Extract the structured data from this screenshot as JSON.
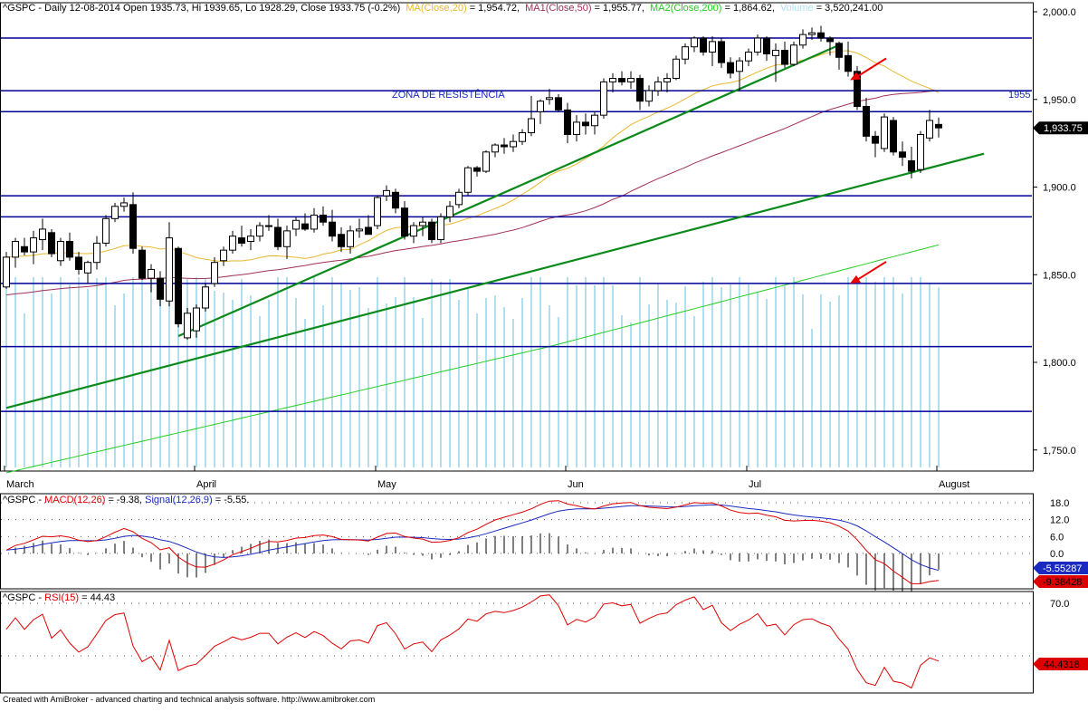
{
  "header": {
    "main_prefix": "^GSPC - Daily 12-08-2014 Open 1935.73, Hi 1939.65, Lo 1928.29, Close 1933.75 (-0.2%)",
    "ma20_label": "MA(Close,20)",
    "ma20_value": " = 1,954.72,",
    "ma50_label": "MA1(Close,50)",
    "ma50_value": " = 1,955.77,",
    "ma200_label": "MA2(Close,200)",
    "ma200_value": " = 1,864.62,",
    "volume_label": "Volume",
    "volume_value": " = 3,520,241.00",
    "macd_prefix": "^GSPC - ",
    "macd_label": "MACD(12,26)",
    "macd_value": " = -9.38, ",
    "signal_label": "Signal(12,26,9)",
    "signal_value": " = -5.55.",
    "rsi_prefix": "^GSPC - ",
    "rsi_label": "RSI(15)",
    "rsi_value": " = 44.43"
  },
  "footer_text": "Created with AmiBroker - advanced charting and technical analysis software. http://www.amibroker.com",
  "colors": {
    "ma20": "#e8b830",
    "ma50": "#a0305a",
    "ma200": "#22cc22",
    "volume": "#b0e0f0",
    "trendline": "#0a8a1a",
    "level": "#000099",
    "macd": "#dd0000",
    "signal": "#1a2ac0",
    "rsi": "#dd0000",
    "arrow": "#ee0000"
  },
  "chart_data": [
    {
      "type": "candlestick",
      "title": "^GSPC - Daily 12-08-2014",
      "ylim": [
        1735,
        2005
      ],
      "y_ticks": [
        "2,000.0",
        "1,950.0",
        "1,900.0",
        "1,850.0",
        "1,800.0",
        "1,750.0"
      ],
      "y_tick_values": [
        2000,
        1950,
        1900,
        1850,
        1800,
        1750
      ],
      "months": [
        "March",
        "April",
        "May",
        "Jun",
        "Jul",
        "August"
      ],
      "month_start_index": [
        0,
        21,
        41,
        62,
        82,
        103
      ],
      "last_close_label": "1,933.75",
      "last_close": 1933.75,
      "annotation_text": "ZONA DE RESISTÊNCIA",
      "annotation_value": "1955",
      "horizontal_levels": [
        1985,
        1955,
        1943,
        1895,
        1883,
        1845,
        1809,
        1772
      ],
      "trendlines": [
        {
          "from": [
            19,
            1815
          ],
          "to": [
            92,
            1981
          ]
        },
        {
          "from": [
            0,
            1774
          ],
          "to": [
            108,
            1919
          ]
        }
      ],
      "arrow_targets": [
        {
          "index": 93,
          "value": 1961
        },
        {
          "index": 93,
          "value": 1845
        }
      ],
      "candles": [
        [
          1843,
          1863,
          1842,
          1860
        ],
        [
          1860,
          1871,
          1854,
          1869
        ],
        [
          1866,
          1871,
          1861,
          1863
        ],
        [
          1863,
          1875,
          1856,
          1871
        ],
        [
          1870,
          1882,
          1864,
          1876
        ],
        [
          1874,
          1876,
          1860,
          1862
        ],
        [
          1858,
          1871,
          1855,
          1869
        ],
        [
          1869,
          1874,
          1858,
          1860
        ],
        [
          1860,
          1863,
          1850,
          1853
        ],
        [
          1851,
          1858,
          1845,
          1857
        ],
        [
          1857,
          1872,
          1853,
          1868
        ],
        [
          1868,
          1884,
          1866,
          1882
        ],
        [
          1882,
          1891,
          1880,
          1889
        ],
        [
          1889,
          1894,
          1886,
          1891
        ],
        [
          1890,
          1897,
          1862,
          1865
        ],
        [
          1864,
          1866,
          1847,
          1848
        ],
        [
          1848,
          1856,
          1840,
          1853
        ],
        [
          1848,
          1852,
          1832,
          1836
        ],
        [
          1835,
          1880,
          1832,
          1871
        ],
        [
          1865,
          1866,
          1820,
          1822
        ],
        [
          1814,
          1831,
          1813,
          1828
        ],
        [
          1818,
          1833,
          1814,
          1831
        ],
        [
          1831,
          1845,
          1829,
          1843
        ],
        [
          1845,
          1860,
          1843,
          1857
        ],
        [
          1858,
          1866,
          1855,
          1864
        ],
        [
          1864,
          1875,
          1862,
          1872
        ],
        [
          1871,
          1878,
          1866,
          1868
        ],
        [
          1869,
          1876,
          1864,
          1872
        ],
        [
          1872,
          1880,
          1869,
          1878
        ],
        [
          1878,
          1884,
          1875,
          1878
        ],
        [
          1877,
          1882,
          1864,
          1866
        ],
        [
          1866,
          1878,
          1859,
          1875
        ],
        [
          1876,
          1883,
          1872,
          1881
        ],
        [
          1879,
          1885,
          1875,
          1876
        ],
        [
          1876,
          1888,
          1874,
          1884
        ],
        [
          1884,
          1889,
          1878,
          1880
        ],
        [
          1880,
          1887,
          1869,
          1872
        ],
        [
          1873,
          1877,
          1863,
          1866
        ],
        [
          1866,
          1878,
          1862,
          1875
        ],
        [
          1875,
          1882,
          1871,
          1876
        ],
        [
          1877,
          1884,
          1874,
          1873
        ],
        [
          1878,
          1895,
          1876,
          1894
        ],
        [
          1895,
          1901,
          1892,
          1898
        ],
        [
          1897,
          1899,
          1885,
          1888
        ],
        [
          1888,
          1892,
          1870,
          1872
        ],
        [
          1872,
          1880,
          1868,
          1878
        ],
        [
          1878,
          1883,
          1872,
          1880
        ],
        [
          1880,
          1882,
          1868,
          1870
        ],
        [
          1870,
          1885,
          1868,
          1883
        ],
        [
          1883,
          1892,
          1880,
          1889
        ],
        [
          1890,
          1899,
          1888,
          1897
        ],
        [
          1897,
          1912,
          1895,
          1911
        ],
        [
          1911,
          1912,
          1906,
          1909
        ],
        [
          1909,
          1921,
          1908,
          1920
        ],
        [
          1920,
          1925,
          1917,
          1924
        ],
        [
          1924,
          1928,
          1919,
          1923
        ],
        [
          1923,
          1930,
          1920,
          1926
        ],
        [
          1926,
          1933,
          1924,
          1931
        ],
        [
          1931,
          1952,
          1929,
          1939
        ],
        [
          1943,
          1950,
          1936,
          1949
        ],
        [
          1950,
          1956,
          1947,
          1951
        ],
        [
          1951,
          1953,
          1943,
          1944
        ],
        [
          1944,
          1948,
          1925,
          1930
        ],
        [
          1930,
          1941,
          1926,
          1937
        ],
        [
          1937,
          1942,
          1930,
          1935
        ],
        [
          1935,
          1943,
          1930,
          1941
        ],
        [
          1941,
          1962,
          1939,
          1960
        ],
        [
          1960,
          1965,
          1954,
          1962
        ],
        [
          1962,
          1966,
          1958,
          1960
        ],
        [
          1960,
          1966,
          1956,
          1962
        ],
        [
          1962,
          1964,
          1944,
          1949
        ],
        [
          1949,
          1958,
          1946,
          1955
        ],
        [
          1955,
          1963,
          1952,
          1960
        ],
        [
          1960,
          1965,
          1954,
          1962
        ],
        [
          1962,
          1975,
          1961,
          1973
        ],
        [
          1973,
          1982,
          1970,
          1980
        ],
        [
          1980,
          1986,
          1977,
          1985
        ],
        [
          1985,
          1986,
          1975,
          1977
        ],
        [
          1977,
          1986,
          1969,
          1983
        ],
        [
          1983,
          1985,
          1968,
          1971
        ],
        [
          1971,
          1974,
          1962,
          1965
        ],
        [
          1966,
          1974,
          1955,
          1972
        ],
        [
          1972,
          1979,
          1969,
          1977
        ],
        [
          1977,
          1987,
          1975,
          1985
        ],
        [
          1985,
          1986,
          1972,
          1976
        ],
        [
          1975,
          1982,
          1960,
          1978
        ],
        [
          1978,
          1983,
          1968,
          1970
        ],
        [
          1970,
          1983,
          1969,
          1981
        ],
        [
          1981,
          1990,
          1979,
          1987
        ],
        [
          1987,
          1991,
          1984,
          1988
        ],
        [
          1988,
          1992,
          1983,
          1985
        ],
        [
          1985,
          1986,
          1975,
          1983
        ],
        [
          1982,
          1983,
          1967,
          1974
        ],
        [
          1975,
          1983,
          1963,
          1966
        ],
        [
          1966,
          1969,
          1944,
          1946
        ],
        [
          1946,
          1951,
          1926,
          1929
        ],
        [
          1929,
          1932,
          1917,
          1925
        ],
        [
          1922,
          1942,
          1920,
          1940
        ],
        [
          1938,
          1940,
          1918,
          1920
        ],
        [
          1920,
          1926,
          1912,
          1917
        ],
        [
          1915,
          1923,
          1905,
          1909
        ],
        [
          1910,
          1932,
          1908,
          1930
        ],
        [
          1928,
          1944,
          1926,
          1938
        ],
        [
          1935.73,
          1939.65,
          1928.29,
          1933.75
        ]
      ]
    },
    {
      "type": "line",
      "title": "MACD(12,26) / Signal(12,26,9)",
      "series_names": [
        "MACD(12,26)",
        "Signal(12,26,9)"
      ],
      "ylim": [
        -14,
        21
      ],
      "y_ticks": [
        "18.0",
        "12.0",
        "6.0",
        "0.0"
      ],
      "y_tick_values": [
        18,
        12,
        6,
        0
      ],
      "last_macd": -9.38,
      "last_signal": -5.55,
      "last_macd_label": "-9.38428",
      "last_signal_label": "-5.55287"
    },
    {
      "type": "line",
      "title": "RSI(15)",
      "series_names": [
        "RSI(15)"
      ],
      "ylim": [
        30,
        78
      ],
      "y_ticks": [
        "70.0"
      ],
      "y_tick_values": [
        70
      ],
      "last_value": 44.43,
      "last_label": "44.4318"
    }
  ]
}
